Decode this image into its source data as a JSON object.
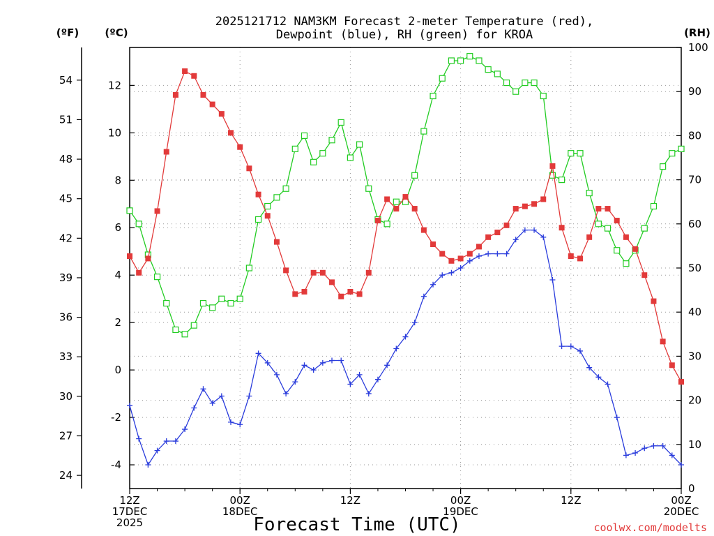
{
  "chart_data": {
    "type": "line",
    "title_line1": "2025121712 NAM3KM Forecast 2-meter Temperature (red),",
    "title_line2": "Dewpoint (blue), RH (green) for KROA",
    "xlabel": "Forecast Time (UTC)",
    "credit": "coolwx.com/modelts",
    "units": {
      "fahrenheit": "(ºF)",
      "celsius": "(ºC)",
      "rh": "(RH)"
    },
    "x_range_hours": [
      0,
      60
    ],
    "y_celsius_range": [
      -5,
      13.6
    ],
    "y_rh_range": [
      0,
      100
    ],
    "x_ticks": [
      {
        "hour": 0,
        "line1": "12Z",
        "line2": "17DEC",
        "line3": "2025"
      },
      {
        "hour": 12,
        "line1": "00Z",
        "line2": "18DEC",
        "line3": ""
      },
      {
        "hour": 24,
        "line1": "12Z",
        "line2": "",
        "line3": ""
      },
      {
        "hour": 36,
        "line1": "00Z",
        "line2": "19DEC",
        "line3": ""
      },
      {
        "hour": 48,
        "line1": "12Z",
        "line2": "",
        "line3": ""
      },
      {
        "hour": 60,
        "line1": "00Z",
        "line2": "20DEC",
        "line3": ""
      }
    ],
    "y_celsius_ticks": [
      "-4",
      "-2",
      "0",
      "2",
      "4",
      "6",
      "8",
      "10",
      "12"
    ],
    "y_fahrenheit_ticks": [
      "24",
      "27",
      "30",
      "33",
      "36",
      "39",
      "42",
      "45",
      "48",
      "51",
      "54"
    ],
    "y_rh_ticks": [
      "0",
      "10",
      "20",
      "30",
      "40",
      "50",
      "60",
      "70",
      "80",
      "90",
      "100"
    ],
    "colors": {
      "temperature": "#e23a3a",
      "dewpoint": "#2a3cdc",
      "rh": "#22cc22",
      "grid": "#999999"
    },
    "series": [
      {
        "name": "Temperature",
        "unit": "C",
        "values": [
          4.8,
          4.1,
          4.7,
          6.7,
          9.2,
          11.6,
          12.6,
          12.4,
          11.6,
          11.2,
          10.8,
          10.0,
          9.4,
          8.5,
          7.4,
          6.5,
          5.4,
          4.2,
          3.2,
          3.3,
          4.1,
          4.1,
          3.7,
          3.1,
          3.3,
          3.2,
          4.1,
          6.3,
          7.2,
          6.8,
          7.3,
          6.8,
          5.9,
          5.3,
          4.9,
          4.6,
          4.7,
          4.9,
          5.2,
          5.6,
          5.8,
          6.1,
          6.8,
          6.9,
          7.0,
          7.2,
          8.6,
          6.0,
          4.8,
          4.7,
          5.6,
          6.8,
          6.8,
          6.3,
          5.6,
          5.1,
          4.0,
          2.9,
          1.2,
          0.2,
          -0.5
        ]
      },
      {
        "name": "Dewpoint",
        "unit": "C",
        "values": [
          -1.5,
          -2.9,
          -4.0,
          -3.4,
          -3.0,
          -3.0,
          -2.5,
          -1.6,
          -0.8,
          -1.4,
          -1.1,
          -2.2,
          -2.3,
          -1.1,
          0.7,
          0.3,
          -0.2,
          -1.0,
          -0.5,
          0.2,
          0.0,
          0.3,
          0.4,
          0.4,
          -0.6,
          -0.2,
          -1.0,
          -0.4,
          0.2,
          0.9,
          1.4,
          2.0,
          3.1,
          3.6,
          4.0,
          4.1,
          4.3,
          4.6,
          4.8,
          4.9,
          4.9,
          4.9,
          5.5,
          5.9,
          5.9,
          5.6,
          3.8,
          1.0,
          1.0,
          0.8,
          0.1,
          -0.3,
          -0.6,
          -2.0,
          -3.6,
          -3.5,
          -3.3,
          -3.2,
          -3.2,
          -3.6,
          -4.0
        ]
      },
      {
        "name": "RH",
        "unit": "%",
        "values": [
          63,
          60,
          53,
          48,
          42,
          36,
          35,
          37,
          42,
          41,
          43,
          42,
          43,
          50,
          61,
          64,
          66,
          68,
          77,
          80,
          74,
          76,
          79,
          83,
          75,
          78,
          68,
          61,
          60,
          65,
          65,
          71,
          81,
          89,
          93,
          97,
          97,
          98,
          97,
          95,
          94,
          92,
          90,
          92,
          92,
          89,
          71,
          70,
          76,
          76,
          67,
          60,
          59,
          54,
          51,
          54,
          59,
          64,
          73,
          76,
          77
        ]
      }
    ]
  }
}
